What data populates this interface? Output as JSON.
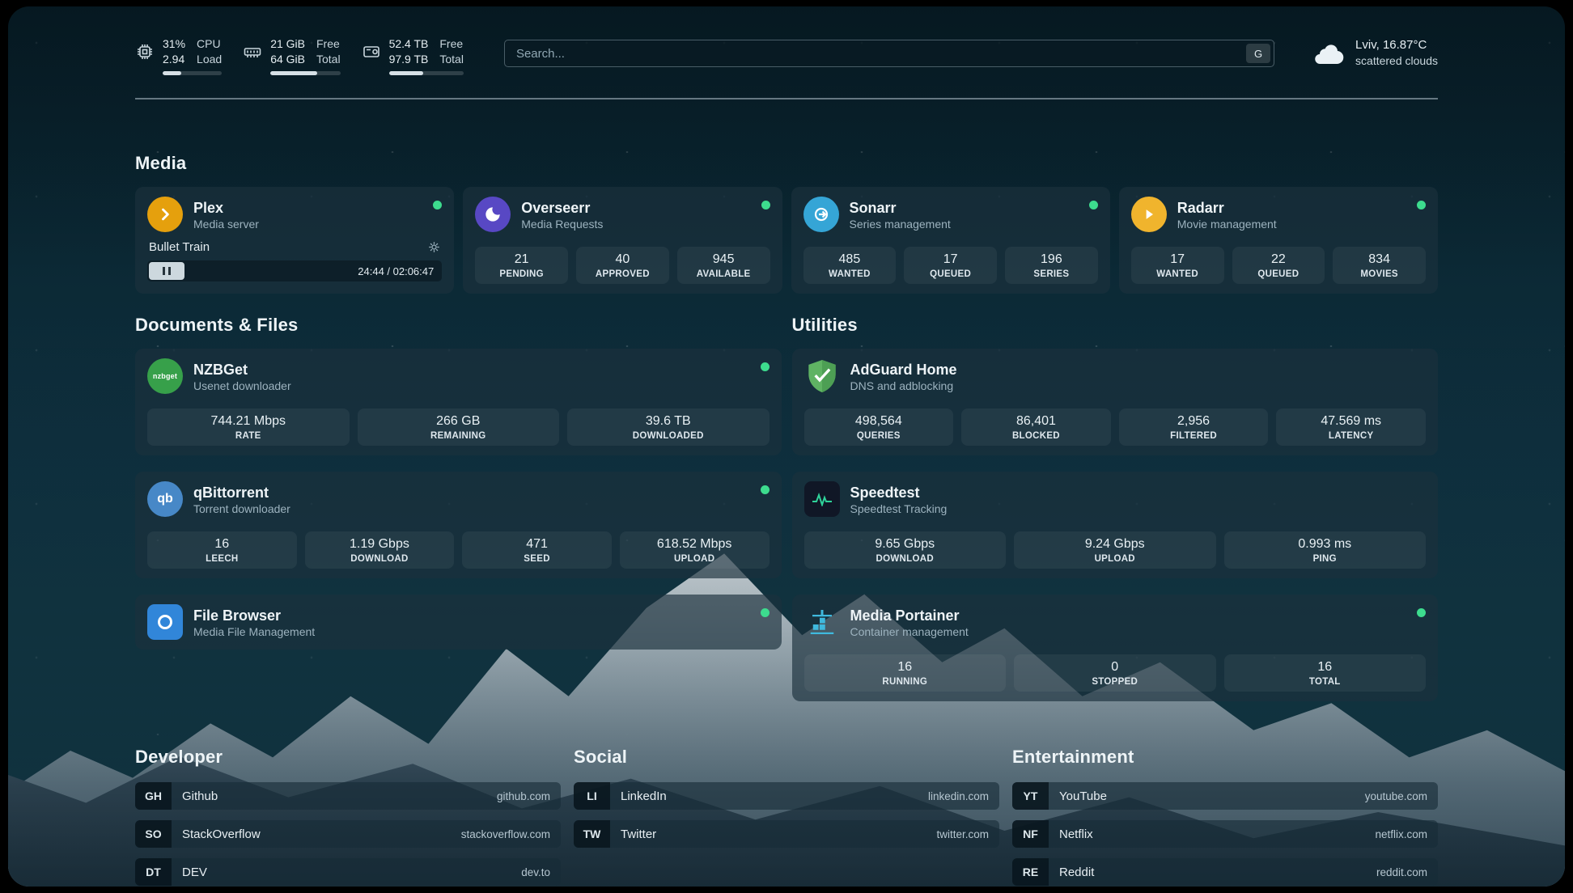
{
  "colors": {
    "status_online": "#3ddc8e",
    "plex": "#e5a00d",
    "overseerr": "#5848c4",
    "sonarr": "#35a5d6",
    "radarr": "#f0b42d",
    "nzbget": "#37a04a",
    "qbittorrent": "#4788c7",
    "filebrowser": "#3186d9",
    "speedtest_bg": "#101726",
    "portainer_fg": "#3fb9dd"
  },
  "header": {
    "cpu": {
      "value_top": "31%",
      "value_bottom": "2.94",
      "label_top": "CPU",
      "label_bottom": "Load",
      "percent": 31
    },
    "memory": {
      "value_top": "21 GiB",
      "value_bottom": "64 GiB",
      "label_top": "Free",
      "label_bottom": "Total",
      "percent": 67
    },
    "disk": {
      "value_top": "52.4 TB",
      "value_bottom": "97.9 TB",
      "label_top": "Free",
      "label_bottom": "Total",
      "percent": 46
    },
    "search": {
      "placeholder": "Search...",
      "button_label": "G"
    },
    "weather": {
      "location": "Lviv, 16.87°C",
      "condition": "scattered clouds"
    }
  },
  "media": {
    "title": "Media",
    "plex": {
      "name": "Plex",
      "description": "Media server",
      "now_playing": "Bullet Train",
      "time": "24:44 / 02:06:47"
    },
    "overseerr": {
      "name": "Overseerr",
      "description": "Media Requests",
      "stats": [
        {
          "value": "21",
          "label": "PENDING"
        },
        {
          "value": "40",
          "label": "APPROVED"
        },
        {
          "value": "945",
          "label": "AVAILABLE"
        }
      ]
    },
    "sonarr": {
      "name": "Sonarr",
      "description": "Series management",
      "stats": [
        {
          "value": "485",
          "label": "WANTED"
        },
        {
          "value": "17",
          "label": "QUEUED"
        },
        {
          "value": "196",
          "label": "SERIES"
        }
      ]
    },
    "radarr": {
      "name": "Radarr",
      "description": "Movie management",
      "stats": [
        {
          "value": "17",
          "label": "WANTED"
        },
        {
          "value": "22",
          "label": "QUEUED"
        },
        {
          "value": "834",
          "label": "MOVIES"
        }
      ]
    }
  },
  "documents": {
    "title": "Documents & Files",
    "nzbget": {
      "name": "NZBGet",
      "description": "Usenet downloader",
      "icon_text": "nzbget",
      "stats": [
        {
          "value": "744.21 Mbps",
          "label": "RATE"
        },
        {
          "value": "266 GB",
          "label": "REMAINING"
        },
        {
          "value": "39.6 TB",
          "label": "DOWNLOADED"
        }
      ]
    },
    "qbittorrent": {
      "name": "qBittorrent",
      "description": "Torrent downloader",
      "icon_text": "qb",
      "stats": [
        {
          "value": "16",
          "label": "LEECH"
        },
        {
          "value": "1.19 Gbps",
          "label": "DOWNLOAD"
        },
        {
          "value": "471",
          "label": "SEED"
        },
        {
          "value": "618.52 Mbps",
          "label": "UPLOAD"
        }
      ]
    },
    "filebrowser": {
      "name": "File Browser",
      "description": "Media File Management"
    }
  },
  "utilities": {
    "title": "Utilities",
    "adguard": {
      "name": "AdGuard Home",
      "description": "DNS and adblocking",
      "stats": [
        {
          "value": "498,564",
          "label": "QUERIES"
        },
        {
          "value": "86,401",
          "label": "BLOCKED"
        },
        {
          "value": "2,956",
          "label": "FILTERED"
        },
        {
          "value": "47.569 ms",
          "label": "LATENCY"
        }
      ]
    },
    "speedtest": {
      "name": "Speedtest",
      "description": "Speedtest Tracking",
      "stats": [
        {
          "value": "9.65 Gbps",
          "label": "DOWNLOAD"
        },
        {
          "value": "9.24 Gbps",
          "label": "UPLOAD"
        },
        {
          "value": "0.993 ms",
          "label": "PING"
        }
      ]
    },
    "portainer": {
      "name": "Media Portainer",
      "description": "Container management",
      "stats": [
        {
          "value": "16",
          "label": "RUNNING"
        },
        {
          "value": "0",
          "label": "STOPPED"
        },
        {
          "value": "16",
          "label": "TOTAL"
        }
      ]
    }
  },
  "bookmarks": {
    "developer": {
      "title": "Developer",
      "items": [
        {
          "abbr": "GH",
          "name": "Github",
          "url": "github.com"
        },
        {
          "abbr": "SO",
          "name": "StackOverflow",
          "url": "stackoverflow.com"
        },
        {
          "abbr": "DT",
          "name": "DEV",
          "url": "dev.to"
        }
      ]
    },
    "social": {
      "title": "Social",
      "items": [
        {
          "abbr": "LI",
          "name": "LinkedIn",
          "url": "linkedin.com"
        },
        {
          "abbr": "TW",
          "name": "Twitter",
          "url": "twitter.com"
        }
      ]
    },
    "entertainment": {
      "title": "Entertainment",
      "items": [
        {
          "abbr": "YT",
          "name": "YouTube",
          "url": "youtube.com"
        },
        {
          "abbr": "NF",
          "name": "Netflix",
          "url": "netflix.com"
        },
        {
          "abbr": "RE",
          "name": "Reddit",
          "url": "reddit.com"
        }
      ]
    }
  }
}
